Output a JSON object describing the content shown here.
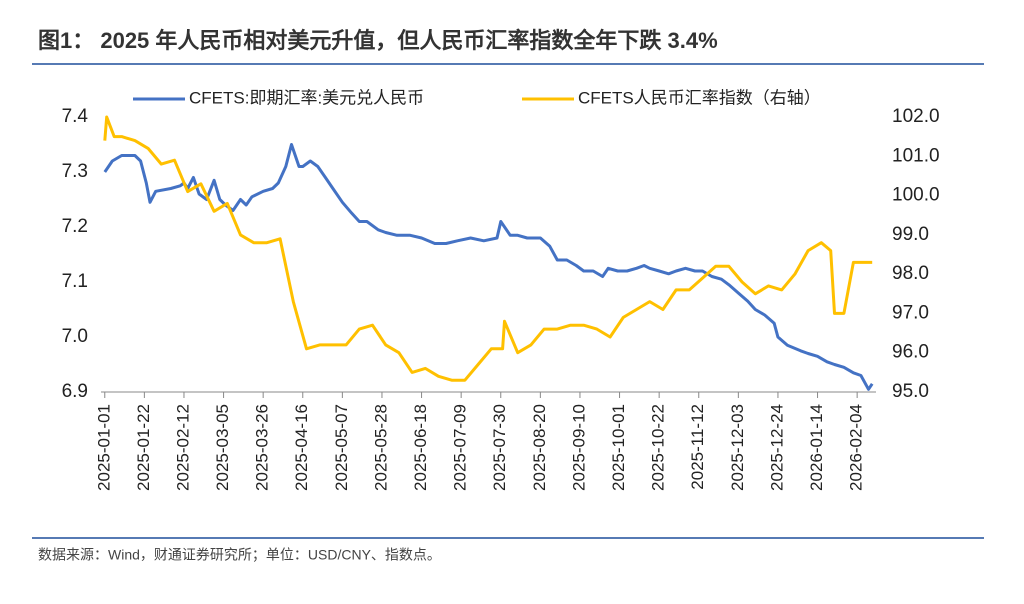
{
  "chart_data": {
    "type": "line",
    "title": "图1： 2025 年人民币相对美元升值，但人民币汇率指数全年下跌 3.4%",
    "source": "数据来源：Wind，财通证券研究所；单位：USD/CNY、指数点。",
    "xlim": [
      "2024-12-30",
      "2026-02-14"
    ],
    "xticks": [
      "2025-01-01",
      "2025-01-22",
      "2025-02-12",
      "2025-03-05",
      "2025-03-26",
      "2025-04-16",
      "2025-05-07",
      "2025-05-28",
      "2025-06-18",
      "2025-07-09",
      "2025-07-30",
      "2025-08-20",
      "2025-09-10",
      "2025-10-01",
      "2025-10-22",
      "2025-11-12",
      "2025-12-03",
      "2025-12-24",
      "2026-01-14",
      "2026-02-04"
    ],
    "ylim": [
      6.9,
      7.4
    ],
    "yticks": [
      {
        "value": 6.9,
        "label": "6.9"
      },
      {
        "value": 7.0,
        "label": "7.0"
      },
      {
        "value": 7.1,
        "label": "7.1"
      },
      {
        "value": 7.2,
        "label": "7.2"
      },
      {
        "value": 7.3,
        "label": "7.3"
      },
      {
        "value": 7.4,
        "label": "7.4"
      }
    ],
    "y2lim": [
      95,
      102
    ],
    "y2ticks": [
      {
        "value": 95,
        "label": "95.0"
      },
      {
        "value": 96,
        "label": "96.0"
      },
      {
        "value": 97,
        "label": "97.0"
      },
      {
        "value": 98,
        "label": "98.0"
      },
      {
        "value": 99,
        "label": "99.0"
      },
      {
        "value": 100,
        "label": "100.0"
      },
      {
        "value": 101,
        "label": "101.0"
      },
      {
        "value": 102,
        "label": "102.0"
      }
    ],
    "series": [
      {
        "name": "CFETS:即期汇率:美元兑人民币",
        "color": "#4472c4",
        "x": [
          "2025-01-01",
          "2025-01-05",
          "2025-01-10",
          "2025-01-17",
          "2025-01-20",
          "2025-01-23",
          "2025-01-25",
          "2025-01-28",
          "2025-02-05",
          "2025-02-10",
          "2025-02-12",
          "2025-02-14",
          "2025-02-17",
          "2025-02-20",
          "2025-02-24",
          "2025-02-28",
          "2025-03-03",
          "2025-03-06",
          "2025-03-10",
          "2025-03-14",
          "2025-03-17",
          "2025-03-20",
          "2025-03-26",
          "2025-03-31",
          "2025-04-03",
          "2025-04-07",
          "2025-04-10",
          "2025-04-14",
          "2025-04-16",
          "2025-04-20",
          "2025-04-24",
          "2025-04-28",
          "2025-05-02",
          "2025-05-07",
          "2025-05-12",
          "2025-05-16",
          "2025-05-20",
          "2025-05-26",
          "2025-05-30",
          "2025-06-05",
          "2025-06-12",
          "2025-06-18",
          "2025-06-25",
          "2025-07-01",
          "2025-07-07",
          "2025-07-14",
          "2025-07-21",
          "2025-07-28",
          "2025-07-30",
          "2025-08-04",
          "2025-08-08",
          "2025-08-13",
          "2025-08-20",
          "2025-08-25",
          "2025-08-29",
          "2025-09-03",
          "2025-09-08",
          "2025-09-12",
          "2025-09-17",
          "2025-09-22",
          "2025-09-25",
          "2025-09-30",
          "2025-10-05",
          "2025-10-10",
          "2025-10-14",
          "2025-10-17",
          "2025-10-22",
          "2025-10-27",
          "2025-10-31",
          "2025-11-05",
          "2025-11-10",
          "2025-11-14",
          "2025-11-19",
          "2025-11-24",
          "2025-11-28",
          "2025-12-03",
          "2025-12-08",
          "2025-12-12",
          "2025-12-17",
          "2025-12-22",
          "2025-12-24",
          "2025-12-29",
          "2026-01-05",
          "2026-01-09",
          "2026-01-14",
          "2026-01-19",
          "2026-01-23",
          "2026-01-28",
          "2026-02-02",
          "2026-02-06",
          "2026-02-10",
          "2026-02-12"
        ],
        "values": [
          7.3,
          7.32,
          7.33,
          7.33,
          7.32,
          7.28,
          7.245,
          7.265,
          7.27,
          7.275,
          7.28,
          7.27,
          7.29,
          7.26,
          7.25,
          7.285,
          7.25,
          7.24,
          7.23,
          7.25,
          7.24,
          7.255,
          7.265,
          7.27,
          7.28,
          7.31,
          7.35,
          7.31,
          7.31,
          7.32,
          7.31,
          7.29,
          7.27,
          7.245,
          7.225,
          7.21,
          7.21,
          7.195,
          7.19,
          7.185,
          7.185,
          7.18,
          7.17,
          7.17,
          7.175,
          7.18,
          7.175,
          7.18,
          7.21,
          7.185,
          7.185,
          7.18,
          7.18,
          7.165,
          7.14,
          7.14,
          7.13,
          7.12,
          7.12,
          7.11,
          7.125,
          7.12,
          7.12,
          7.125,
          7.13,
          7.125,
          7.12,
          7.115,
          7.12,
          7.125,
          7.12,
          7.12,
          7.11,
          7.105,
          7.095,
          7.08,
          7.065,
          7.05,
          7.04,
          7.025,
          7.0,
          6.985,
          6.975,
          6.97,
          6.965,
          6.955,
          6.95,
          6.945,
          6.935,
          6.93,
          6.905,
          6.915
        ]
      },
      {
        "name": "CFETS人民币汇率指数（右轴）",
        "color": "#ffc000",
        "axis": "y2",
        "x": [
          "2025-01-01",
          "2025-01-02",
          "2025-01-06",
          "2025-01-10",
          "2025-01-17",
          "2025-01-24",
          "2025-01-31",
          "2025-02-07",
          "2025-02-14",
          "2025-02-21",
          "2025-02-28",
          "2025-03-07",
          "2025-03-14",
          "2025-03-21",
          "2025-03-28",
          "2025-04-04",
          "2025-04-11",
          "2025-04-18",
          "2025-04-25",
          "2025-05-02",
          "2025-05-09",
          "2025-05-16",
          "2025-05-23",
          "2025-05-30",
          "2025-06-06",
          "2025-06-13",
          "2025-06-20",
          "2025-06-27",
          "2025-07-04",
          "2025-07-11",
          "2025-07-18",
          "2025-07-25",
          "2025-07-31",
          "2025-08-01",
          "2025-08-08",
          "2025-08-15",
          "2025-08-22",
          "2025-08-29",
          "2025-09-05",
          "2025-09-12",
          "2025-09-19",
          "2025-09-26",
          "2025-10-03",
          "2025-10-10",
          "2025-10-17",
          "2025-10-24",
          "2025-10-31",
          "2025-11-07",
          "2025-11-14",
          "2025-11-21",
          "2025-11-28",
          "2025-12-05",
          "2025-12-12",
          "2025-12-19",
          "2025-12-26",
          "2026-01-02",
          "2026-01-09",
          "2026-01-16",
          "2026-01-21",
          "2026-01-23",
          "2026-01-28",
          "2026-02-02",
          "2026-02-12"
        ],
        "values": [
          101.4,
          102.0,
          101.5,
          101.5,
          101.4,
          101.2,
          100.8,
          100.9,
          100.1,
          100.3,
          99.6,
          99.8,
          99.0,
          98.8,
          98.8,
          98.9,
          97.3,
          96.1,
          96.2,
          96.2,
          96.2,
          96.6,
          96.7,
          96.2,
          96.0,
          95.5,
          95.6,
          95.4,
          95.3,
          95.3,
          95.7,
          96.1,
          96.1,
          96.8,
          96.0,
          96.2,
          96.6,
          96.6,
          96.7,
          96.7,
          96.6,
          96.4,
          96.9,
          97.1,
          97.3,
          97.1,
          97.6,
          97.6,
          97.9,
          98.2,
          98.2,
          97.8,
          97.5,
          97.7,
          97.6,
          98.0,
          98.6,
          98.8,
          98.6,
          97.0,
          97.0,
          98.3,
          98.3
        ]
      }
    ]
  }
}
